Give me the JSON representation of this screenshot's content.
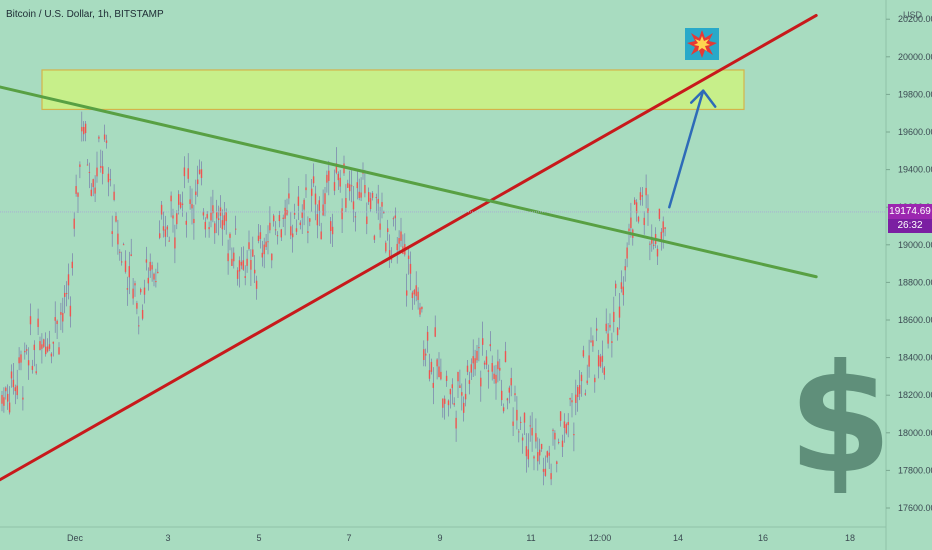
{
  "header": {
    "title": "Bitcoin / U.S. Dollar, 1h, BITSTAMP",
    "currency": "USD"
  },
  "colors": {
    "background": "#a8dcc0",
    "candle_up": "#ef5350",
    "wick": "#6f6fa8",
    "red_trendline": "#c8191b",
    "green_trendline": "#58a043",
    "arrow": "#2e6bb8",
    "zone_fill": "#c7ef8a",
    "zone_border": "#d4b34a",
    "price_badge": "#9c27b0"
  },
  "badges": {
    "last_price": "19174.69",
    "countdown": "26:32"
  },
  "icons": {
    "boom": "collision-icon",
    "watermark": "dollar-sign-icon"
  },
  "chart_data": {
    "type": "candlestick",
    "title": "Bitcoin / U.S. Dollar, 1h, BITSTAMP",
    "y_axis": {
      "min": 17520,
      "max": 20390,
      "ticks": [
        "17600.00",
        "17800.00",
        "18000.00",
        "18200.00",
        "18400.00",
        "18600.00",
        "18800.00",
        "19000.00",
        "19200.00",
        "19400.00",
        "19600.00",
        "19800.00",
        "20000.00",
        "20200.00"
      ]
    },
    "x_axis": {
      "ticks": [
        "Dec",
        "3",
        "5",
        "7",
        "9",
        "11",
        "12:00",
        "14",
        "16",
        "18"
      ]
    },
    "last_price": 19174.69,
    "price_path": [
      [
        "Nov 30 00:00",
        17950
      ],
      [
        "Nov 30 12:00",
        18200
      ],
      [
        "Dec 1 00:00",
        18700
      ],
      [
        "Dec 1 06:00",
        19650
      ],
      [
        "Dec 1 12:00",
        19350
      ],
      [
        "Dec 1 18:00",
        19500
      ],
      [
        "Dec 2 00:00",
        19100
      ],
      [
        "Dec 2 12:00",
        18700
      ],
      [
        "Dec 3 00:00",
        19000
      ],
      [
        "Dec 3 12:00",
        19300
      ],
      [
        "Dec 4 00:00",
        19250
      ],
      [
        "Dec 4 12:00",
        19050
      ],
      [
        "Dec 5 00:00",
        18850
      ],
      [
        "Dec 5 12:00",
        19100
      ],
      [
        "Dec 6 00:00",
        19150
      ],
      [
        "Dec 6 12:00",
        19200
      ],
      [
        "Dec 7 00:00",
        19300
      ],
      [
        "Dec 7 12:00",
        19250
      ],
      [
        "Dec 8 00:00",
        19100
      ],
      [
        "Dec 8 12:00",
        18850
      ],
      [
        "Dec 9 00:00",
        18400
      ],
      [
        "Dec 9 12:00",
        18150
      ],
      [
        "Dec 10 00:00",
        18450
      ],
      [
        "Dec 10 12:00",
        18300
      ],
      [
        "Dec 11 00:00",
        18100
      ],
      [
        "Dec 11 12:00",
        17800
      ],
      [
        "Dec 12 00:00",
        18050
      ],
      [
        "Dec 12 12:00",
        18350
      ],
      [
        "Dec 13 00:00",
        18500
      ],
      [
        "Dec 13 06:00",
        18900
      ],
      [
        "Dec 13 12:00",
        19250
      ],
      [
        "Dec 13 18:00",
        19150
      ],
      [
        "Dec 14 00:00",
        19050
      ],
      [
        "Dec 14 04:00",
        19175
      ]
    ],
    "annotations": {
      "resistance_zone": [
        19720,
        19930
      ],
      "red_trendline": {
        "from": [
          "Nov 30 00:00",
          17690
        ],
        "to": [
          "Dec 17 12:00",
          20220
        ]
      },
      "green_trendline": {
        "from": [
          "Nov 30 06:00",
          19850
        ],
        "to": [
          "Dec 17 12:00",
          18830
        ]
      },
      "blue_arrow": {
        "from": [
          "Dec 14 06:00",
          19200
        ],
        "to": [
          "Dec 15 00:00",
          19820
        ]
      }
    }
  }
}
